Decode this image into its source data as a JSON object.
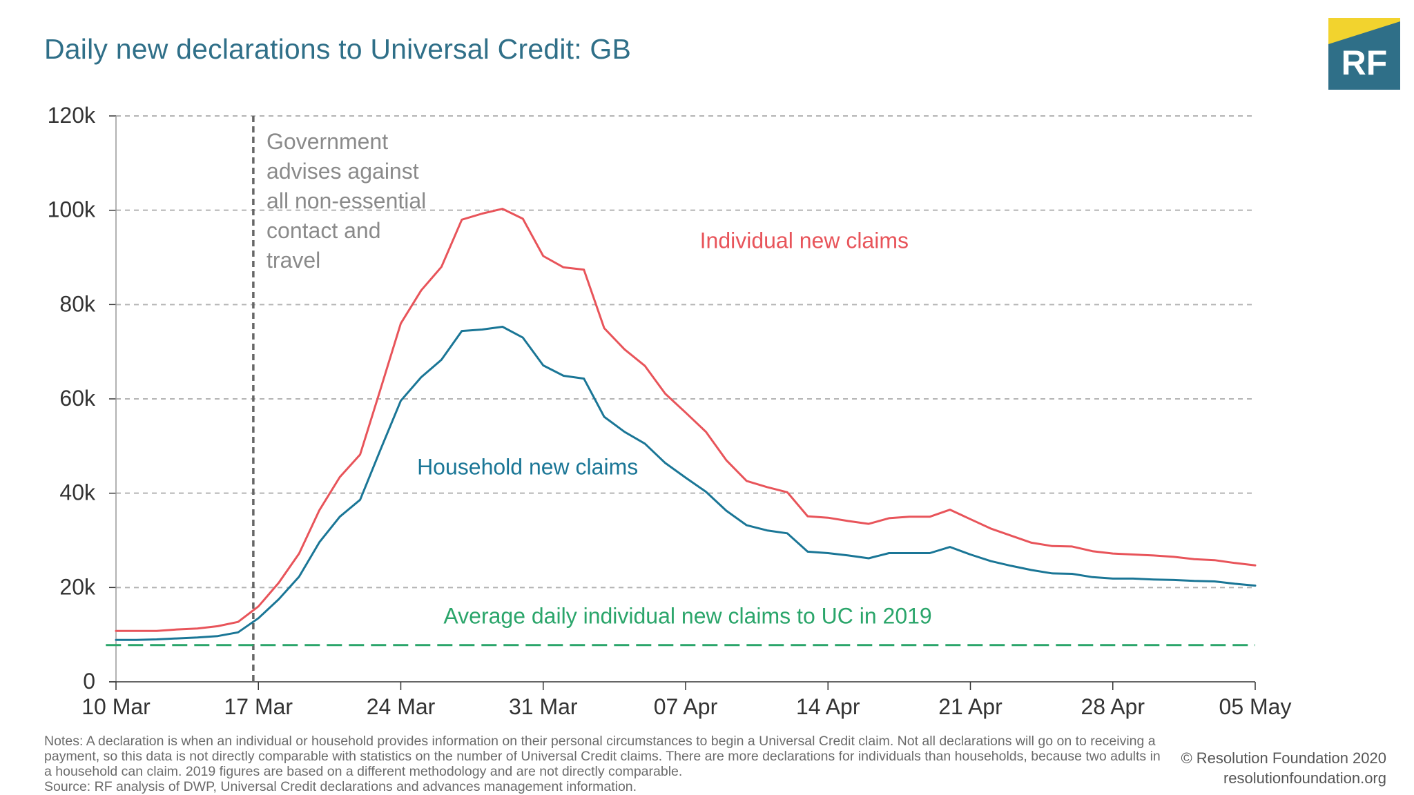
{
  "colors": {
    "title": "#2f6f88",
    "individual": "#e8545a",
    "household": "#1a7696",
    "baseline": "#2aa56a",
    "annotation": "#8a8a8a",
    "grid": "#b3b3b3",
    "axis": "#333333",
    "logo_teal": "#2f6f88",
    "logo_yellow": "#f2d32e"
  },
  "header": {
    "title": "Daily new declarations to Universal Credit: GB",
    "logo_text": "RF"
  },
  "chart_data": {
    "type": "line",
    "title": "Daily new declarations to Universal Credit: GB",
    "xlabel": "",
    "ylabel": "",
    "ylim": [
      0,
      120000
    ],
    "grid": true,
    "y_ticks": [
      0,
      20000,
      40000,
      60000,
      80000,
      100000,
      120000
    ],
    "y_tick_labels": [
      "0",
      "20k",
      "40k",
      "60k",
      "80k",
      "100k",
      "120k"
    ],
    "x_ticks": [
      0,
      7,
      14,
      21,
      28,
      35,
      42,
      49,
      56
    ],
    "x_tick_labels": [
      "10 Mar",
      "17 Mar",
      "24 Mar",
      "31 Mar",
      "07 Apr",
      "14 Apr",
      "21 Apr",
      "28 Apr",
      "05 May"
    ],
    "x_range": [
      0,
      56
    ],
    "series": [
      {
        "name": "Individual new claims",
        "label": "Individual new claims",
        "x": [
          0,
          1,
          2,
          3,
          4,
          5,
          6,
          7,
          8,
          9,
          10,
          11,
          12,
          13,
          14,
          15,
          16,
          17,
          18,
          19,
          20,
          21,
          22,
          23,
          24,
          25,
          26,
          27,
          28,
          29,
          30,
          31,
          32,
          33,
          34,
          35,
          36,
          37,
          38,
          39,
          40,
          41,
          42,
          43,
          44,
          45,
          46,
          47,
          48,
          49,
          50,
          51,
          52,
          53,
          54,
          55,
          56
        ],
        "values": [
          10800,
          10800,
          10800,
          11100,
          11300,
          11800,
          12700,
          16000,
          21000,
          27200,
          36400,
          43400,
          48200,
          62000,
          76000,
          83000,
          88000,
          98000,
          99300,
          100300,
          98200,
          90300,
          87900,
          87400,
          75000,
          70500,
          67000,
          61100,
          57100,
          53000,
          47000,
          42600,
          41300,
          40200,
          35100,
          34800,
          34100,
          33500,
          34700,
          35000,
          35000,
          36500,
          34500,
          32500,
          31000,
          29500,
          28800,
          28700,
          27700,
          27200,
          27000,
          26800,
          26500,
          26000,
          25800,
          25200,
          24700
        ],
        "label_x": 28.7,
        "label_y": 92000
      },
      {
        "name": "Household new claims",
        "label": "Household new claims",
        "x": [
          0,
          1,
          2,
          3,
          4,
          5,
          6,
          7,
          8,
          9,
          10,
          11,
          12,
          13,
          14,
          15,
          16,
          17,
          18,
          19,
          20,
          21,
          22,
          23,
          24,
          25,
          26,
          27,
          28,
          29,
          30,
          31,
          32,
          33,
          34,
          35,
          36,
          37,
          38,
          39,
          40,
          41,
          42,
          43,
          44,
          45,
          46,
          47,
          48,
          49,
          50,
          51,
          52,
          53,
          54,
          55,
          56
        ],
        "values": [
          8900,
          8900,
          9000,
          9200,
          9400,
          9700,
          10500,
          13500,
          17500,
          22300,
          29600,
          35000,
          38600,
          49200,
          59600,
          64600,
          68300,
          74400,
          74700,
          75300,
          73000,
          67100,
          64900,
          64300,
          56200,
          53000,
          50500,
          46400,
          43300,
          40300,
          36300,
          33200,
          32100,
          31500,
          27600,
          27300,
          26800,
          26200,
          27300,
          27300,
          27300,
          28600,
          27000,
          25600,
          24600,
          23700,
          23000,
          22900,
          22200,
          21900,
          21900,
          21700,
          21600,
          21400,
          21300,
          20800,
          20400
        ],
        "label_x": 14.8,
        "label_y": 44000
      },
      {
        "name": "Average daily individual new claims to UC in 2019",
        "label": "Average daily individual new claims to UC in 2019",
        "x": [
          -0.5,
          56
        ],
        "values": [
          7800,
          7800
        ],
        "label_x": 16.1,
        "label_y": 12400
      }
    ],
    "annotations": [
      {
        "type": "vline",
        "x": 6.75,
        "text_lines": [
          "Government",
          "advises against",
          "all non-essential",
          "contact and",
          "travel"
        ],
        "text_x": 7.4,
        "text_y": 113000
      }
    ]
  },
  "footer": {
    "notes": [
      "Notes: A declaration is when an individual or household provides information on their personal circumstances to begin a Universal Credit claim. Not all declarations will go on to receiving a payment, so this data is not directly comparable with statistics on the number of Universal Credit claims. There are more declarations for individuals than households, because two adults in a household can claim. 2019 figures are based on a different methodology and are not directly comparable.",
      "Source: RF analysis of DWP, Universal Credit declarations and advances management information."
    ],
    "credit_line1": "© Resolution Foundation 2020",
    "credit_line2": "resolutionfoundation.org"
  }
}
